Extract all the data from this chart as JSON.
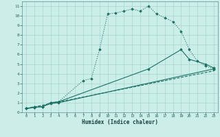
{
  "xlabel": "Humidex (Indice chaleur)",
  "background_color": "#cceee8",
  "grid_color": "#aad4ce",
  "line_color": "#1a7065",
  "xlim": [
    -0.5,
    23.5
  ],
  "ylim": [
    0,
    11.5
  ],
  "xticks": [
    0,
    1,
    2,
    3,
    4,
    5,
    6,
    7,
    8,
    9,
    10,
    11,
    12,
    13,
    14,
    15,
    16,
    17,
    18,
    19,
    20,
    21,
    22,
    23
  ],
  "yticks": [
    0,
    1,
    2,
    3,
    4,
    5,
    6,
    7,
    8,
    9,
    10,
    11
  ],
  "lines": [
    {
      "x": [
        0,
        1,
        2,
        3,
        4,
        7,
        8,
        9,
        10,
        11,
        12,
        13,
        14,
        15,
        16,
        17,
        18,
        19,
        20,
        21,
        22,
        23
      ],
      "y": [
        0.4,
        0.6,
        0.6,
        1.0,
        1.1,
        3.3,
        3.5,
        6.5,
        10.2,
        10.3,
        10.5,
        10.7,
        10.5,
        11.0,
        10.2,
        9.8,
        9.4,
        8.4,
        6.5,
        5.3,
        4.8,
        4.5
      ],
      "style": ":",
      "marker": "D",
      "markersize": 1.8,
      "linewidth": 0.8
    },
    {
      "x": [
        0,
        1,
        2,
        3,
        4,
        15,
        19,
        20,
        22,
        23
      ],
      "y": [
        0.4,
        0.5,
        0.6,
        1.0,
        1.1,
        4.5,
        6.5,
        5.5,
        5.0,
        4.6
      ],
      "style": "-",
      "marker": "D",
      "markersize": 1.8,
      "linewidth": 0.8
    },
    {
      "x": [
        0,
        1,
        2,
        3,
        4,
        23
      ],
      "y": [
        0.4,
        0.5,
        0.6,
        0.9,
        1.0,
        4.5
      ],
      "style": "-",
      "marker": "D",
      "markersize": 1.8,
      "linewidth": 0.8
    },
    {
      "x": [
        0,
        23
      ],
      "y": [
        0.4,
        4.3
      ],
      "style": "--",
      "marker": "None",
      "markersize": 0,
      "linewidth": 0.8
    }
  ]
}
